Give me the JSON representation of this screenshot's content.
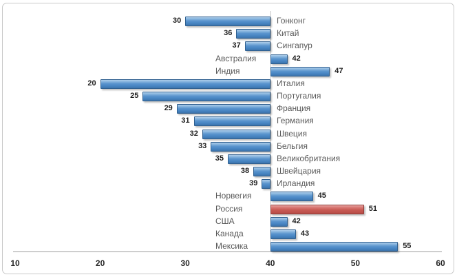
{
  "chart_data": {
    "type": "bar",
    "orientation": "horizontal",
    "title": "",
    "xlabel": "",
    "ylabel": "",
    "xlim": [
      10,
      60
    ],
    "x_ticks": [
      10,
      20,
      30,
      40,
      50,
      60
    ],
    "baseline": 40,
    "grid": false,
    "legend": false,
    "categories": [
      "Гонконг",
      "Китай",
      "Сингапур",
      "Австралия",
      "Индия",
      "Италия",
      "Португалия",
      "Франция",
      "Германия",
      "Швеция",
      "Бельгия",
      "Великобритания",
      "Швейцария",
      "Ирландия",
      "Норвегия",
      "Россия",
      "США",
      "Канада",
      "Мексика"
    ],
    "values": [
      30,
      36,
      37,
      42,
      47,
      20,
      25,
      29,
      31,
      32,
      33,
      35,
      38,
      39,
      45,
      51,
      42,
      43,
      55
    ],
    "highlighted_category": "Россия",
    "bar_color": "#4886c3",
    "highlight_color": "#c0504d",
    "axis_line_color": "#9b9b9b",
    "baseline_color": "#c4c4c4",
    "category_label_color": "#595959",
    "value_label_color": "#1f1f1f",
    "frame_border_color": "#c9c9c9",
    "background_color": "#ffffff"
  }
}
